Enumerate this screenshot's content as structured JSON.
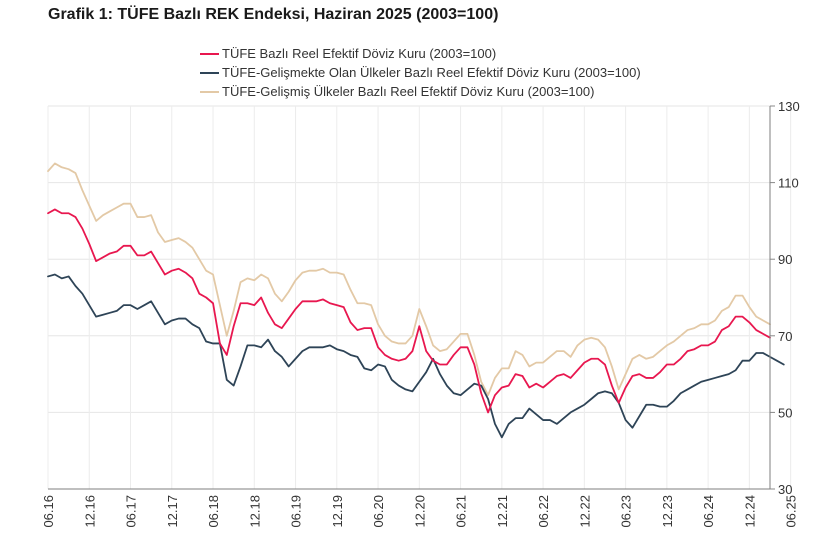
{
  "title": "Grafik 1: TÜFE Bazlı REK Endeksi, Haziran 2025 (2003=100)",
  "chart_data": {
    "type": "line",
    "title": "Grafik 1: TÜFE Bazlı REK Endeksi, Haziran 2025 (2003=100)",
    "xlabel": "",
    "ylabel": "",
    "ylim": [
      30,
      130
    ],
    "yticks": [
      30,
      50,
      70,
      90,
      110,
      130
    ],
    "y_axis_side": "right",
    "grid": "vertical-and-horizontal",
    "legend_position": "top",
    "x_tick_labels": [
      "06.16",
      "12.16",
      "06.17",
      "12.17",
      "06.18",
      "12.18",
      "06.19",
      "12.19",
      "06.20",
      "12.20",
      "06.21",
      "12.21",
      "06.22",
      "12.22",
      "06.23",
      "12.23",
      "06.24",
      "12.24",
      "06.25"
    ],
    "x_start": "2016-06",
    "x_end": "2025-06",
    "series": [
      {
        "name": "TÜFE  Bazlı Reel Efektif Döviz Kuru (2003=100)",
        "color": "#e8174f",
        "values": [
          102,
          103,
          102,
          102,
          101,
          98,
          94,
          89.5,
          90.5,
          91.5,
          92,
          93.5,
          93.5,
          91,
          91,
          92,
          89,
          86,
          87,
          87.5,
          86.5,
          85,
          81,
          80,
          78.5,
          68,
          65,
          72.5,
          78.5,
          78.5,
          78,
          80,
          76,
          73,
          72,
          74.5,
          77,
          79,
          79,
          79,
          79.5,
          78.5,
          78,
          77.5,
          73.5,
          71.5,
          72,
          72,
          67,
          65,
          64,
          63.5,
          64,
          66,
          72.5,
          66,
          63.5,
          62.5,
          62.5,
          65,
          67,
          67,
          62.5,
          55,
          50,
          54.5,
          56.5,
          57,
          60,
          59.5,
          56.5,
          57.5,
          56.5,
          58,
          59.5,
          60,
          59,
          61,
          63,
          64,
          64,
          62.5,
          57,
          52.5,
          56.5,
          59.5,
          60,
          59,
          59,
          60.5,
          62.5,
          62.5,
          64,
          66,
          66.5,
          67.5,
          67.5,
          68.5,
          71.5,
          72.5,
          75,
          75,
          73.5,
          71.5,
          70.5,
          69.5
        ]
      },
      {
        "name": "TÜFE-Gelişmekte Olan Ülkeler Bazlı Reel Efektif Döviz Kuru (2003=100)",
        "color": "#2e4457",
        "values": [
          85.5,
          86,
          85,
          85.5,
          83,
          81,
          78,
          75,
          75.5,
          76,
          76.5,
          78,
          78,
          77,
          78,
          79,
          76,
          73,
          74,
          74.5,
          74.5,
          73,
          72,
          68.5,
          68,
          68,
          58.5,
          57,
          62,
          67.5,
          67.5,
          67,
          69,
          66,
          64.5,
          62,
          64,
          66,
          67,
          67,
          67,
          67.5,
          66.5,
          66,
          65,
          64.5,
          61.5,
          61,
          62.5,
          62,
          58.5,
          57,
          56,
          55.5,
          58,
          60.5,
          64,
          60,
          57,
          55,
          54.5,
          56,
          57.5,
          57,
          53.5,
          47,
          43.5,
          47,
          48.5,
          48.5,
          51,
          49.5,
          48,
          48,
          47,
          48.5,
          50,
          51,
          52,
          53.5,
          55,
          55.5,
          55,
          52.5,
          48,
          46,
          49,
          52,
          52,
          51.5,
          51.5,
          53,
          55,
          56,
          57,
          58,
          58.5,
          59,
          59.5,
          60,
          61,
          63.5,
          63.5,
          65.5,
          65.5,
          64.5,
          63.5,
          62.5
        ]
      },
      {
        "name": "TÜFE-Gelişmiş Ülkeler Bazlı Reel Efektif Döviz Kuru (2003=100)",
        "color": "#e3c9a6",
        "values": [
          113,
          115,
          114,
          113.5,
          112.5,
          108,
          104,
          100,
          101.5,
          102.5,
          103.5,
          104.5,
          104.5,
          101,
          101,
          101.5,
          97,
          94.5,
          95,
          95.5,
          94.5,
          93,
          90,
          87,
          86,
          78,
          70,
          76.5,
          84,
          85,
          84.5,
          86,
          85,
          81,
          79,
          81.5,
          84.5,
          86.5,
          87,
          87,
          87.5,
          86.5,
          86.5,
          86,
          82,
          78.5,
          78.5,
          78,
          73,
          70,
          68.5,
          68,
          68,
          70,
          77,
          72.5,
          67.5,
          66,
          66.5,
          68.5,
          70.5,
          70.5,
          65,
          58,
          54.5,
          59,
          61.5,
          61.5,
          66,
          65,
          62,
          63,
          63,
          64.5,
          66,
          66,
          64.5,
          67.5,
          69,
          69.5,
          69,
          67,
          62,
          56,
          60,
          64,
          65,
          64,
          64.5,
          66,
          67.5,
          68.5,
          70,
          71.5,
          72,
          73,
          73,
          74,
          76.5,
          77.5,
          80.5,
          80.5,
          77.5,
          75,
          74,
          73
        ]
      }
    ]
  }
}
